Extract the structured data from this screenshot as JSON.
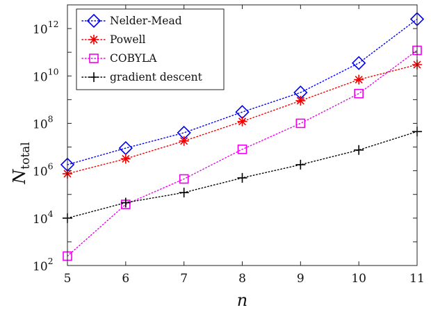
{
  "chart_data": {
    "type": "line",
    "xlabel": "n",
    "ylabel": "N",
    "ylabel_subscript": "total",
    "y_scale": "log",
    "xlim": [
      5,
      11
    ],
    "ylim": [
      100,
      10000000000000.0
    ],
    "x_ticks": [
      "5",
      "6",
      "7",
      "8",
      "9",
      "10",
      "11"
    ],
    "y_ticks": [
      {
        "base": "10",
        "exp": "2",
        "value": 100
      },
      {
        "base": "10",
        "exp": "4",
        "value": 10000
      },
      {
        "base": "10",
        "exp": "6",
        "value": 1000000
      },
      {
        "base": "10",
        "exp": "8",
        "value": 100000000
      },
      {
        "base": "10",
        "exp": "10",
        "value": 10000000000
      },
      {
        "base": "10",
        "exp": "12",
        "value": 1000000000000
      }
    ],
    "grid": false,
    "legend_position": "top-left",
    "x": [
      5,
      6,
      7,
      8,
      9,
      10,
      11
    ],
    "series": [
      {
        "name": "Nelder-Mead",
        "marker": "diamond",
        "color": "#0000ee",
        "values": [
          1800000,
          9000000,
          40000000,
          300000000,
          2000000000,
          35000000000,
          2500000000000
        ]
      },
      {
        "name": "Powell",
        "marker": "asterisk",
        "color": "#ee0000",
        "values": [
          750000,
          3200000,
          18000000,
          120000000,
          900000000,
          7000000000,
          30000000000
        ]
      },
      {
        "name": "COBYLA",
        "marker": "square",
        "color": "#ee00ee",
        "values": [
          250,
          38000,
          450000,
          8000000,
          100000000,
          1800000000,
          120000000000
        ]
      },
      {
        "name": "gradient descent",
        "marker": "plus",
        "color": "#000000",
        "values": [
          10000,
          45000,
          120000,
          500000,
          1800000,
          7500000,
          45000000
        ]
      }
    ]
  }
}
